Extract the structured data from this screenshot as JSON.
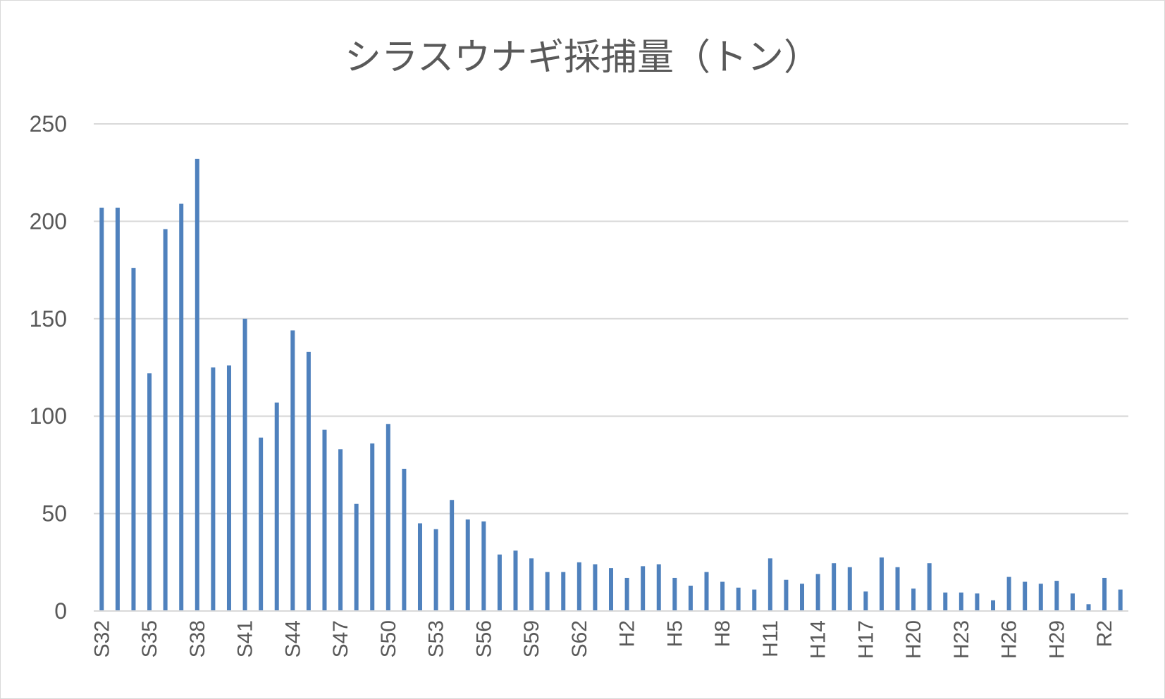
{
  "chart_data": {
    "type": "bar",
    "title": "シラスウナギ採捕量（トン）",
    "xlabel": "",
    "ylabel": "",
    "ylim": [
      0,
      250
    ],
    "yticks": [
      0,
      50,
      100,
      150,
      200,
      250
    ],
    "grid": true,
    "legend": "none",
    "bar_color": "#4f81bd",
    "categories": [
      "S32",
      "S33",
      "S34",
      "S35",
      "S36",
      "S37",
      "S38",
      "S39",
      "S40",
      "S41",
      "S42",
      "S43",
      "S44",
      "S45",
      "S46",
      "S47",
      "S48",
      "S49",
      "S50",
      "S51",
      "S52",
      "S53",
      "S54",
      "S55",
      "S56",
      "S57",
      "S58",
      "S59",
      "S60",
      "S61",
      "S62",
      "S63",
      "H1",
      "H2",
      "H3",
      "H4",
      "H5",
      "H6",
      "H7",
      "H8",
      "H9",
      "H10",
      "H11",
      "H12",
      "H13",
      "H14",
      "H15",
      "H16",
      "H17",
      "H18",
      "H19",
      "H20",
      "H21",
      "H22",
      "H23",
      "H24",
      "H25",
      "H26",
      "H27",
      "H28",
      "H29",
      "H30",
      "R1",
      "R2",
      "R3"
    ],
    "tick_labels": [
      "S32",
      "",
      "",
      "S35",
      "",
      "",
      "S38",
      "",
      "",
      "S41",
      "",
      "",
      "S44",
      "",
      "",
      "S47",
      "",
      "",
      "S50",
      "",
      "",
      "S53",
      "",
      "",
      "S56",
      "",
      "",
      "S59",
      "",
      "",
      "S62",
      "",
      "",
      "H2",
      "",
      "",
      "H5",
      "",
      "",
      "H8",
      "",
      "",
      "H11",
      "",
      "",
      "H14",
      "",
      "",
      "H17",
      "",
      "",
      "H20",
      "",
      "",
      "H23",
      "",
      "",
      "H26",
      "",
      "",
      "H29",
      "",
      "",
      "R2",
      ""
    ],
    "values": [
      207,
      207,
      176,
      122,
      196,
      209,
      232,
      125,
      126,
      150,
      89,
      107,
      144,
      133,
      93,
      83,
      55,
      86,
      96,
      73,
      45,
      42,
      57,
      47,
      46,
      29,
      31,
      27,
      20,
      20,
      25,
      24,
      22,
      17,
      23,
      24,
      17,
      13,
      20,
      15,
      12,
      11,
      27,
      16,
      14,
      19,
      24.5,
      22.5,
      10,
      27.5,
      22.5,
      11.5,
      24.5,
      9.5,
      9.5,
      9,
      5.5,
      17.5,
      15,
      14,
      15.5,
      9,
      3.5,
      17,
      11
    ]
  }
}
